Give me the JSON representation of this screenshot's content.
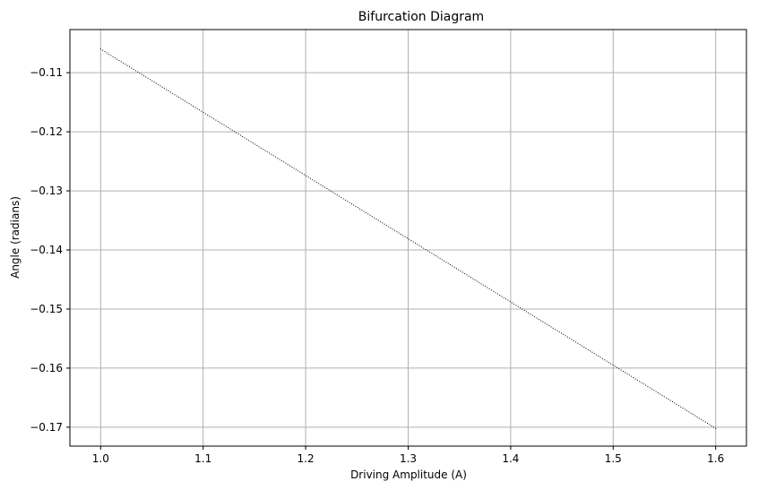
{
  "chart_data": {
    "type": "scatter",
    "title": "Bifurcation Diagram",
    "xlabel": "Driving Amplitude (A)",
    "ylabel": "Angle (radians)",
    "xlim": [
      0.97,
      1.63
    ],
    "ylim": [
      -0.1732,
      -0.1027
    ],
    "x_ticks": [
      1.0,
      1.1,
      1.2,
      1.3,
      1.4,
      1.5,
      1.6
    ],
    "x_tick_labels": [
      "1.0",
      "1.1",
      "1.2",
      "1.3",
      "1.4",
      "1.5",
      "1.6"
    ],
    "y_ticks": [
      -0.11,
      -0.12,
      -0.13,
      -0.14,
      -0.15,
      -0.16,
      -0.17
    ],
    "y_tick_labels": [
      "−0.11",
      "−0.12",
      "−0.13",
      "−0.14",
      "−0.15",
      "−0.16",
      "−0.17"
    ],
    "grid": true,
    "marker_color": "#000000",
    "grid_color": "#b0b0b0",
    "series": [
      {
        "x_start": 1.0,
        "x_end": 1.6,
        "y_start": -0.106,
        "y_end": -0.1702,
        "point_count": 300
      }
    ]
  }
}
